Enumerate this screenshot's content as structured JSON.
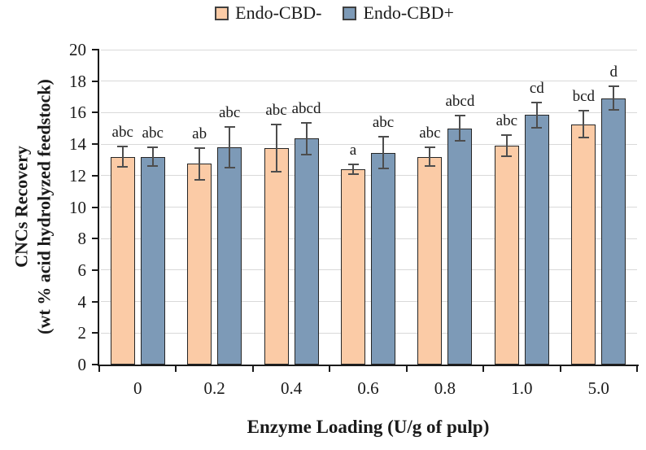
{
  "chart_data": {
    "type": "bar",
    "title": "",
    "categories": [
      "0",
      "0.2",
      "0.4",
      "0.6",
      "0.8",
      "1.0",
      "5.0"
    ],
    "series": [
      {
        "name": "Endo-CBD-",
        "color": "#FBCBA6",
        "values": [
          13.2,
          12.75,
          13.75,
          12.4,
          13.2,
          13.9,
          15.25
        ],
        "errors": [
          0.65,
          1.0,
          1.5,
          0.3,
          0.6,
          0.65,
          0.85
        ],
        "sig_labels": [
          "abc",
          "ab",
          "abc",
          "a",
          "abc",
          "abc",
          "bcd"
        ]
      },
      {
        "name": "Endo-CBD+",
        "color": "#7D9AB7",
        "values": [
          13.2,
          13.8,
          14.35,
          13.45,
          15.0,
          15.85,
          16.9
        ],
        "errors": [
          0.6,
          1.3,
          1.0,
          1.0,
          0.8,
          0.8,
          0.75
        ],
        "sig_labels": [
          "abc",
          "abc",
          "abcd",
          "abc",
          "abcd",
          "cd",
          "d"
        ]
      }
    ],
    "xlabel": "Enzyme Loading (U/g of pulp)",
    "ylabel_line1": "CNCs Recovery",
    "ylabel_line2": "(wt % acid hydrolyzed feedstock)",
    "ylim": [
      0,
      20
    ],
    "yticks": [
      0,
      2,
      4,
      6,
      8,
      10,
      12,
      14,
      16,
      18,
      20
    ],
    "grid": true,
    "legend_position": "top",
    "colors": {
      "grid": "#d9d9d9",
      "axis": "#1a1a1a",
      "error_bar": "#4d4d4d",
      "bar_border": "#262626"
    }
  }
}
